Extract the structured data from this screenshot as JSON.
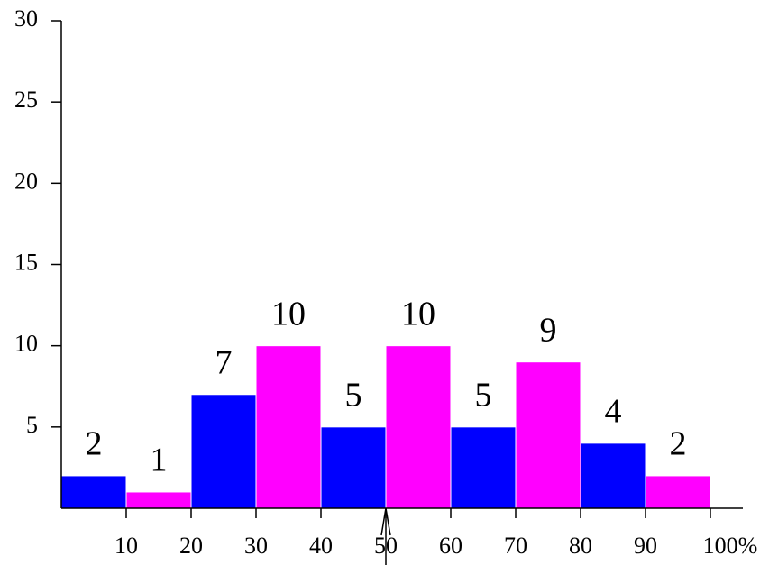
{
  "chart_data": {
    "type": "histogram",
    "bins": [
      0,
      10,
      20,
      30,
      40,
      50,
      60,
      70,
      80,
      90,
      100
    ],
    "values": [
      2,
      1,
      7,
      10,
      5,
      10,
      5,
      9,
      4,
      2
    ],
    "colors": [
      "#0000ff",
      "#ff00ff",
      "#0000ff",
      "#ff00ff",
      "#0000ff",
      "#ff00ff",
      "#0000ff",
      "#ff00ff",
      "#0000ff",
      "#ff00ff"
    ],
    "xlim": [
      0,
      105
    ],
    "ylim": [
      0,
      30
    ],
    "xticks": [
      10,
      20,
      30,
      40,
      50,
      60,
      70,
      80,
      90,
      {
        "value": 100,
        "label": "100%"
      }
    ],
    "yticks": [
      5,
      10,
      15,
      20,
      25,
      30
    ],
    "marker_x": 50
  }
}
